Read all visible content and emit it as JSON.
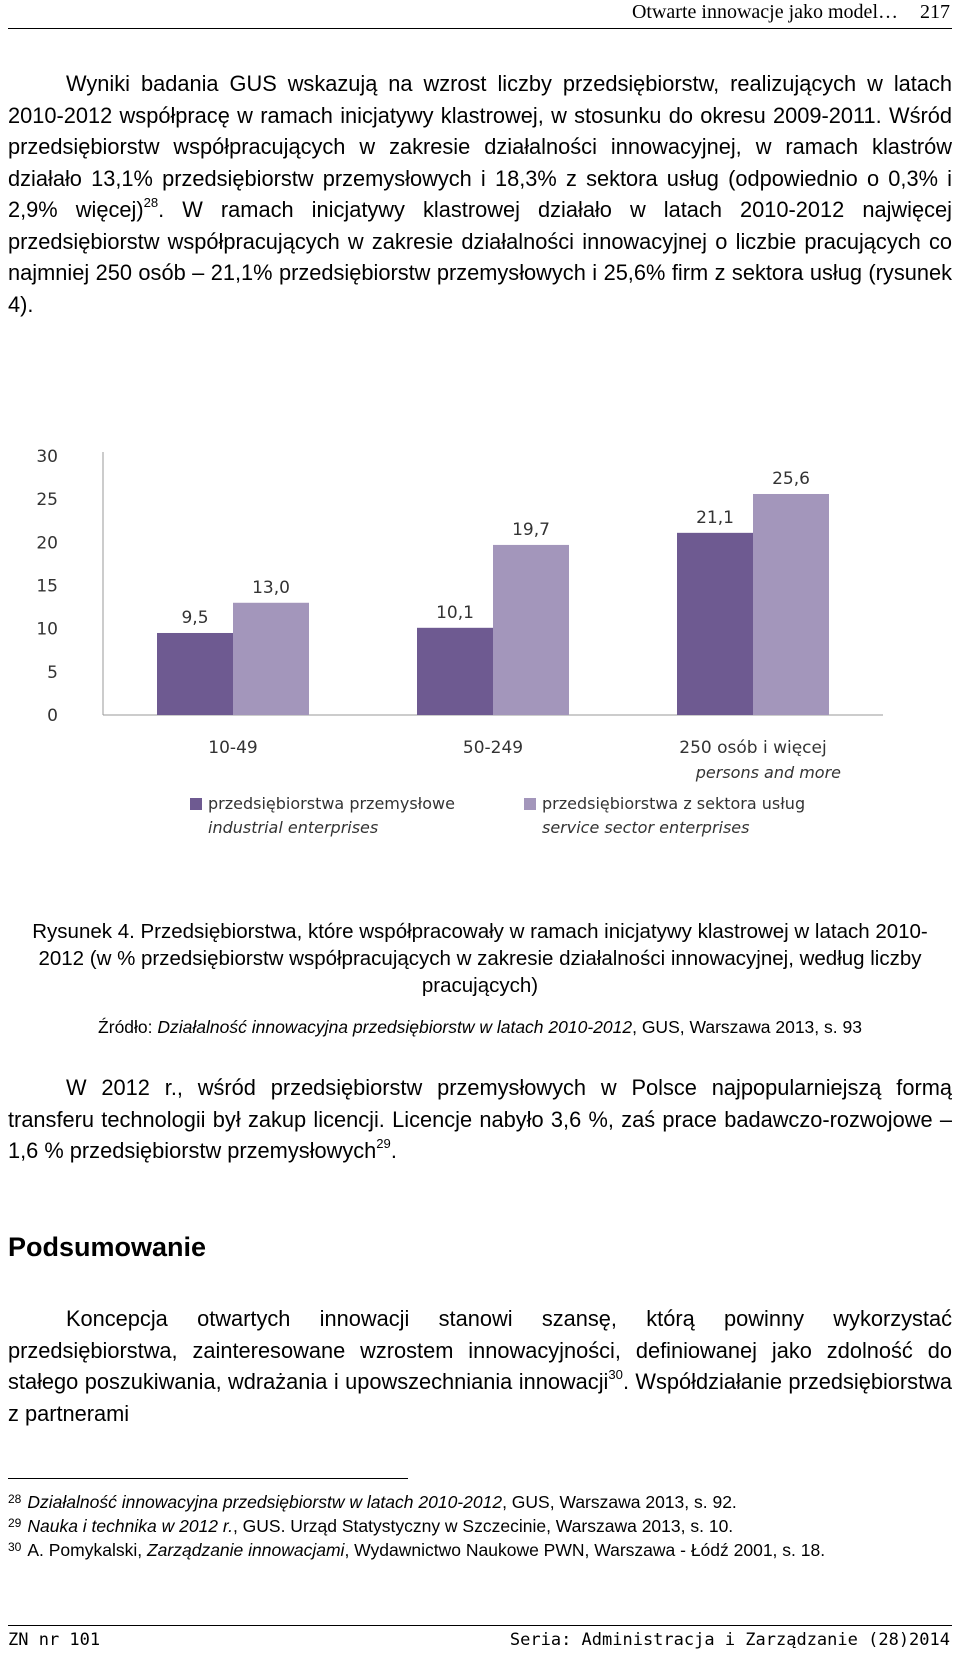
{
  "header": {
    "title": "Otwarte innowacje jako model…",
    "page": "217"
  },
  "paragraph1": {
    "a": "Wyniki badania GUS wskazują na wzrost liczby przedsiębiorstw, realizujących w latach 2010-2012 współpracę w ramach inicjatywy klastrowej, w stosunku do okresu 2009-2011. Wśród przedsiębiorstw współpracujących w zakresie działalności innowacyjnej, w ramach klastrów działało 13,1% przedsiębiorstw przemysłowych i 18,3% z sektora usług (odpowiednio o 0,3% i 2,9% więcej)",
    "ref": "28",
    "b": ". W ramach inicjatywy klastrowej działało w latach 2010-2012 najwięcej przedsiębiorstw współpracujących w zakresie działalności innowacyjnej o liczbie pracujących co najmniej 250 osób – 21,1% przedsiębiorstw przemysłowych i 25,6% firm z sektora usług (rysunek 4)."
  },
  "chart_data": {
    "type": "bar",
    "ylabel": "%",
    "ylim": [
      0,
      30
    ],
    "yticks": [
      "0",
      "5",
      "10",
      "15",
      "20",
      "25",
      "30"
    ],
    "categories": [
      {
        "pl": "10-49",
        "en": ""
      },
      {
        "pl": "50-249",
        "en": ""
      },
      {
        "pl": "250 osób i więcej",
        "en": "persons and more"
      }
    ],
    "series": [
      {
        "name": "przedsiębiorstwa przemysłowe",
        "name_en": "industrial enterprises",
        "color": "#6e5a91",
        "values": [
          9.5,
          10.1,
          21.1
        ],
        "labels": [
          "9,5",
          "10,1",
          "21,1"
        ]
      },
      {
        "name": "przedsiębiorstwa z sektora usług",
        "name_en": "service sector enterprises",
        "color": "#a396bb",
        "values": [
          13.0,
          19.7,
          25.6
        ],
        "labels": [
          "13,0",
          "19,7",
          "25,6"
        ]
      }
    ],
    "grid": false,
    "legend": "bottom"
  },
  "figure": {
    "caption": "Rysunek 4. Przedsiębiorstwa, które współpracowały w ramach inicjatywy klastrowej w latach 2010-2012 (w % przedsiębiorstw współpracujących w zakresie działalności innowacyjnej, według liczby pracujących)",
    "source_label": "Źródło: ",
    "source_title": "Działalność innowacyjna przedsiębiorstw w latach 2010-2012",
    "source_rest": ", GUS, Warszawa 2013, s. 93"
  },
  "paragraph2": {
    "a": "W 2012 r., wśród przedsiębiorstw przemysłowych w Polsce najpopularniejszą formą transferu technologii był zakup licencji. Licencje nabyło 3,6 %, zaś prace badawczo-rozwojowe – 1,6 % przedsiębiorstw przemysłowych",
    "ref": "29",
    "b": "."
  },
  "heading": "Podsumowanie",
  "paragraph3": {
    "a": "Koncepcja otwartych innowacji stanowi szansę, którą powinny wykorzystać przedsiębiorstwa, zainteresowane wzrostem innowacyjności, definiowanej jako zdolność do stałego poszukiwania, wdrażania i upowszechniania innowacji",
    "ref": "30",
    "b": ". Współdziałanie przedsiębiorstwa z partnerami"
  },
  "footnotes": [
    {
      "num": "28",
      "italic": "Działalność innowacyjna przedsiębiorstw w latach 2010-2012",
      "rest": ", GUS, Warszawa 2013, s. 92."
    },
    {
      "num": "29",
      "italic": "Nauka i technika w 2012 r.",
      "rest": ", GUS. Urząd Statystyczny w Szczecinie, Warszawa 2013, s. 10."
    },
    {
      "num": "30",
      "pre": "A. Pomykalski, ",
      "italic": "Zarządzanie innowacjami",
      "rest": ", Wydawnictwo Naukowe PWN, Warszawa - Łódź 2001, s. 18."
    }
  ],
  "footer": {
    "left": "ZN nr 101",
    "right": "Seria: Administracja i Zarządzanie (28)2014"
  }
}
